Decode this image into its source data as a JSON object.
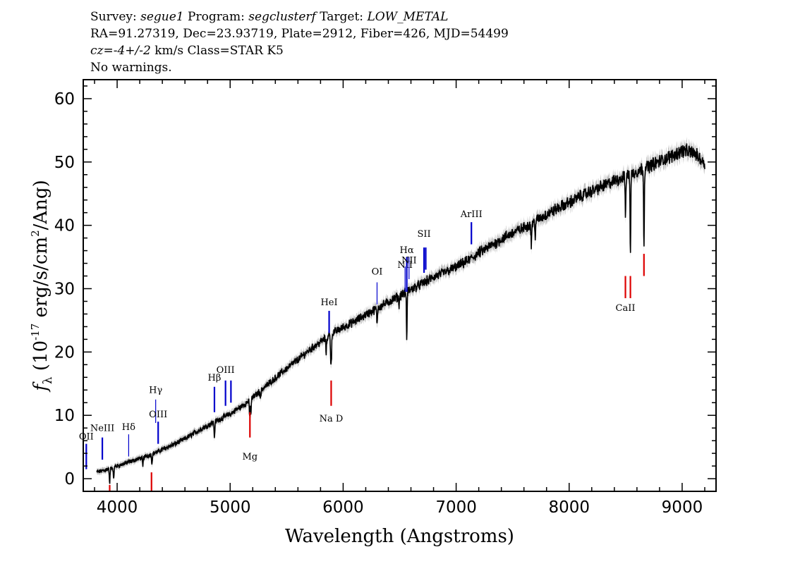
{
  "header": {
    "line1_prefix": "Survey: ",
    "survey": "segue1",
    "line1_mid": " Program: ",
    "program": "segclusterf",
    "line1_mid2": " Target: ",
    "target": "LOW_METAL",
    "line2": "RA=91.27319, Dec=23.93719, Plate=2912, Fiber=426, MJD=54499",
    "cz_symbol": "cz",
    "cz_eq": "=",
    "cz_value": "-4+/-2",
    "cz_rest": " km/s Class=STAR K5",
    "line4": "No warnings."
  },
  "chart_data": {
    "type": "line",
    "xlabel": "Wavelength (Angstroms)",
    "ylabel": "f_λ (10^-17 erg/s/cm^2/Ang)",
    "xlim": [
      3700,
      9300
    ],
    "ylim": [
      -2,
      63
    ],
    "xticks": [
      4000,
      5000,
      6000,
      7000,
      8000,
      9000
    ],
    "yticks": [
      0,
      10,
      20,
      30,
      40,
      50,
      60
    ],
    "colors": {
      "spectrum": "#000000",
      "error": "#c0c0c0",
      "emission": "#0000cc",
      "absorption": "#dd0000"
    },
    "series": [
      {
        "continuum_x": [
          3820,
          3900,
          4000,
          4100,
          4200,
          4300,
          4400,
          4500,
          4600,
          4700,
          4800,
          4900,
          5000,
          5100,
          5200,
          5300,
          5400,
          5500,
          5600,
          5700,
          5800,
          5900,
          6000,
          6100,
          6200,
          6300,
          6400,
          6500,
          6600,
          6700,
          6800,
          6900,
          7000,
          7100,
          7200,
          7300,
          7400,
          7500,
          7600,
          7700,
          7800,
          7900,
          8000,
          8100,
          8200,
          8300,
          8400,
          8500,
          8600,
          8700,
          8800,
          8900,
          9000,
          9100,
          9200
        ],
        "continuum_y": [
          1.0,
          1.4,
          2.0,
          2.6,
          3.2,
          3.8,
          4.6,
          5.4,
          6.3,
          7.4,
          8.4,
          9.3,
          10.2,
          11.4,
          12.8,
          14.4,
          15.9,
          17.4,
          18.8,
          20.3,
          21.6,
          22.9,
          23.9,
          24.8,
          25.9,
          26.9,
          27.9,
          28.9,
          29.9,
          30.8,
          31.8,
          32.6,
          33.4,
          34.4,
          35.6,
          36.7,
          37.8,
          38.8,
          39.6,
          40.7,
          41.7,
          42.7,
          43.6,
          44.6,
          45.4,
          46.2,
          47.0,
          47.8,
          48.5,
          49.3,
          50.1,
          50.9,
          51.8,
          51.5,
          49.8
        ],
        "absorption_lines": [
          {
            "x": 3934,
            "depth": 2.5
          },
          {
            "x": 3969,
            "depth": 2.0
          },
          {
            "x": 4227,
            "depth": 1.5
          },
          {
            "x": 4308,
            "depth": 1.5
          },
          {
            "x": 4861,
            "depth": 2.5
          },
          {
            "x": 5172,
            "depth": 2.5
          },
          {
            "x": 5183,
            "depth": 2.5
          },
          {
            "x": 5270,
            "depth": 1.2
          },
          {
            "x": 5850,
            "depth": 2.5
          },
          {
            "x": 5890,
            "depth": 3.5
          },
          {
            "x": 5896,
            "depth": 3.5
          },
          {
            "x": 6300,
            "depth": 2.5
          },
          {
            "x": 6495,
            "depth": 1.5
          },
          {
            "x": 6563,
            "depth": 7.5
          },
          {
            "x": 7665,
            "depth": 3.5
          },
          {
            "x": 7699,
            "depth": 2.5
          },
          {
            "x": 8498,
            "depth": 6.5
          },
          {
            "x": 8542,
            "depth": 12.5
          },
          {
            "x": 8662,
            "depth": 12.0
          }
        ]
      }
    ],
    "emission_lines": [
      {
        "label": "OII",
        "x": 3727,
        "top": 5.5,
        "bottom": 1.5,
        "label_y": 6.2,
        "thick": true
      },
      {
        "label": "NeIII",
        "x": 3869,
        "top": 6.5,
        "bottom": 3.0,
        "label_y": 7.5,
        "thick": true
      },
      {
        "label": "Hδ",
        "x": 4102,
        "top": 7.0,
        "bottom": 3.5,
        "label_y": 7.7,
        "thick": false
      },
      {
        "label": "Hγ",
        "x": 4341,
        "top": 12.5,
        "bottom": 8.8,
        "label_y": 13.5,
        "thick": false
      },
      {
        "label": "OIII",
        "x": 4363,
        "top": 9.0,
        "bottom": 5.5,
        "label_y": 9.7,
        "thick": true
      },
      {
        "label": "Hβ",
        "x": 4861,
        "top": 14.5,
        "bottom": 10.5,
        "label_y": 15.5,
        "thick": true
      },
      {
        "label": "OIII",
        "x": 4959,
        "top": 15.5,
        "bottom": 11.5,
        "label_y": 16.7,
        "thick": true
      },
      {
        "label": "",
        "x": 5007,
        "top": 15.5,
        "bottom": 12.0,
        "label_y": 0,
        "thick": true
      },
      {
        "label": "HeI",
        "x": 5876,
        "top": 26.5,
        "bottom": 23.0,
        "label_y": 27.4,
        "thick": true
      },
      {
        "label": "OI",
        "x": 6300,
        "top": 31.0,
        "bottom": 27.5,
        "label_y": 32.2,
        "thick": false
      },
      {
        "label": "NII",
        "x": 6548,
        "top": 33.5,
        "bottom": 29.5,
        "label_y": 33.3,
        "thick": false
      },
      {
        "label": "Hα",
        "x": 6563,
        "top": 35.0,
        "bottom": 29.5,
        "label_y": 35.6,
        "thick": true
      },
      {
        "label": "NII",
        "x": 6583,
        "top": 35.0,
        "bottom": 31.5,
        "label_y": 34.0,
        "thick": false
      },
      {
        "label": "SII",
        "x": 6716,
        "top": 36.5,
        "bottom": 32.5,
        "label_y": 38.2,
        "thick": true
      },
      {
        "label": "",
        "x": 6731,
        "top": 36.5,
        "bottom": 33.0,
        "label_y": 0,
        "thick": true
      },
      {
        "label": "ArIII",
        "x": 7135,
        "top": 40.5,
        "bottom": 37.0,
        "label_y": 41.3,
        "thick": true
      }
    ],
    "absorption_markers": [
      {
        "label": "",
        "x": 3934,
        "top": -1.0,
        "bottom": -3.0
      },
      {
        "label": "",
        "x": 4304,
        "top": 1.0,
        "bottom": -3.0
      },
      {
        "label": "Mg",
        "x": 5175,
        "top": 10.5,
        "bottom": 6.5,
        "label_y": 3.0
      },
      {
        "label": "Na D",
        "x": 5894,
        "top": 15.5,
        "bottom": 11.5,
        "label_y": 9.0
      },
      {
        "label": "CaII",
        "x": 8498,
        "top": 32.0,
        "bottom": 28.5,
        "label_y": 26.5
      },
      {
        "label": "",
        "x": 8542,
        "top": 32.0,
        "bottom": 28.5,
        "label_y": 0
      },
      {
        "label": "",
        "x": 8662,
        "top": 35.5,
        "bottom": 32.0,
        "label_y": 0
      }
    ]
  }
}
